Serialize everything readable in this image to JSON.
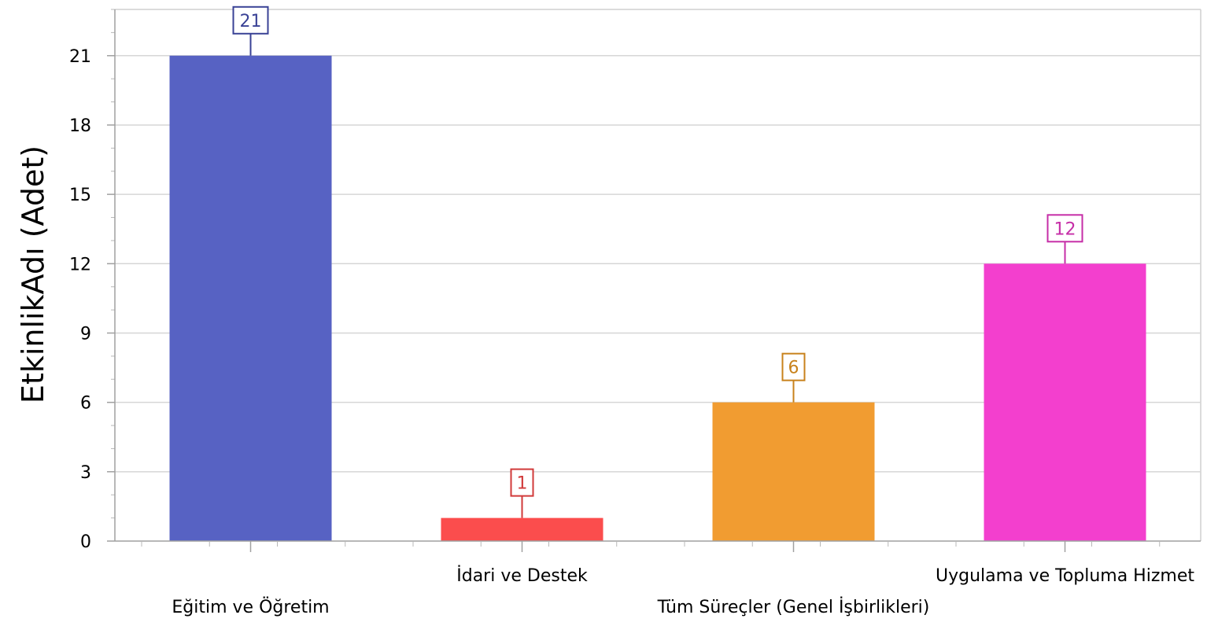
{
  "chart_data": {
    "type": "bar",
    "title": "",
    "xlabel": "",
    "ylabel": "EtkinlikAdı (Adet)",
    "ylim": [
      0,
      23
    ],
    "yticks": [
      0,
      3,
      6,
      9,
      12,
      15,
      18,
      21
    ],
    "grid": true,
    "legend": "none",
    "categories": [
      "Eğitim ve Öğretim",
      "İdari ve Destek",
      "Tüm Süreçler (Genel İşbirlikleri)",
      "Uygulama ve Topluma Hizmet"
    ],
    "values": [
      21,
      1,
      6,
      12
    ],
    "colors": [
      "#5762c3",
      "#fb4d4d",
      "#f19c31",
      "#f33fce"
    ],
    "label_colors": [
      "#3a4296",
      "#d13a3a",
      "#c8821c",
      "#c62ea7"
    ]
  }
}
